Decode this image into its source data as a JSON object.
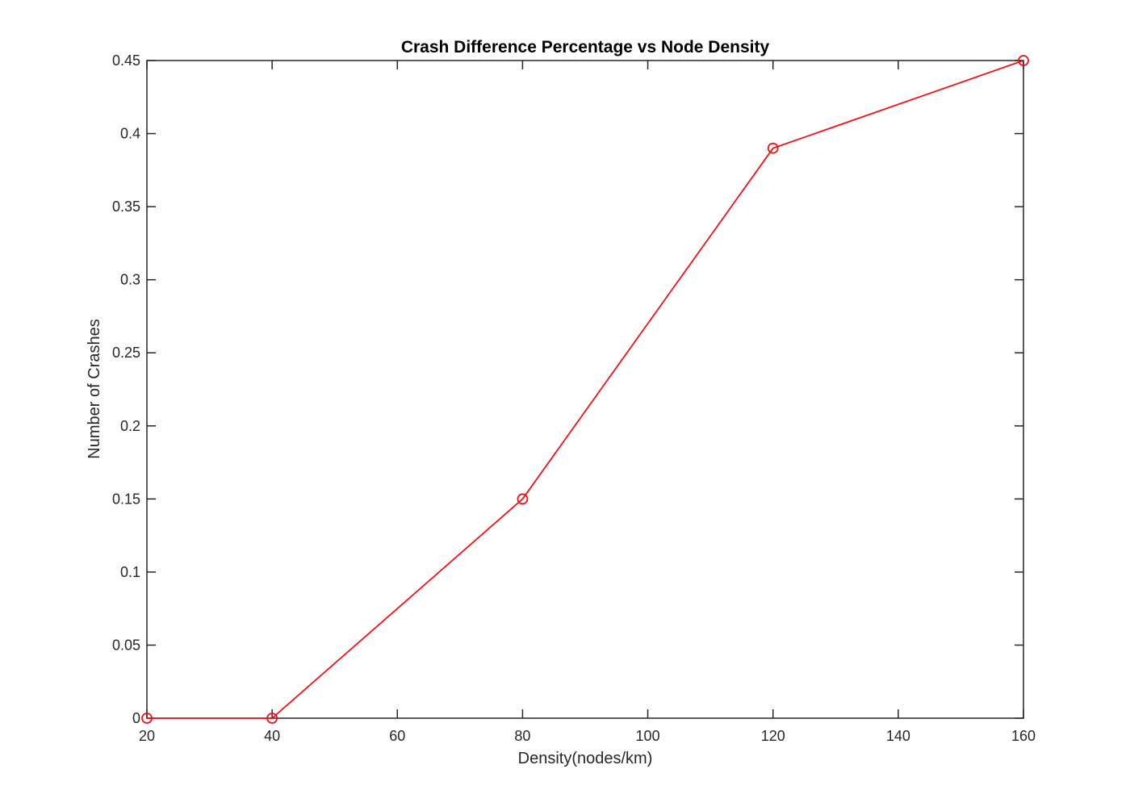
{
  "chart_data": {
    "type": "line",
    "title": "Crash Difference Percentage vs Node Density",
    "xlabel": "Density(nodes/km)",
    "ylabel": "Number of Crashes",
    "xlim": [
      20,
      160
    ],
    "ylim": [
      0,
      0.45
    ],
    "x_ticks": [
      "20",
      "40",
      "60",
      "80",
      "100",
      "120",
      "140",
      "160"
    ],
    "y_ticks": [
      "0",
      "0.05",
      "0.1",
      "0.15",
      "0.2",
      "0.25",
      "0.3",
      "0.35",
      "0.4",
      "0.45"
    ],
    "grid": false,
    "legend": "none",
    "series": [
      {
        "color": "#e8141b",
        "marker": "circle",
        "x": [
          20,
          40,
          80,
          120,
          160
        ],
        "y": [
          0,
          0,
          0.15,
          0.39,
          0.45
        ]
      }
    ]
  }
}
